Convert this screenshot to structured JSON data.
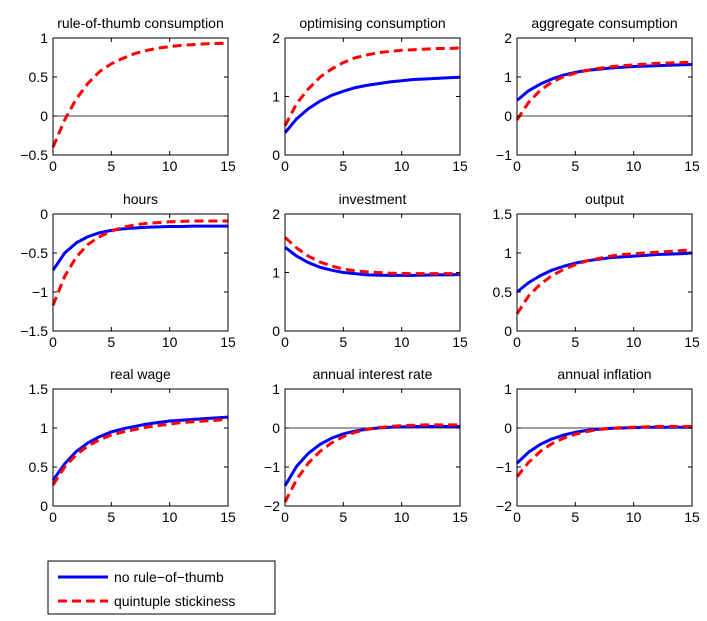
{
  "chart_data": [
    {
      "type": "line",
      "title": "rule-of-thumb consumption",
      "xlim": [
        0,
        15
      ],
      "ylim": [
        -0.5,
        1
      ],
      "xticks": [
        0,
        5,
        10,
        15
      ],
      "yticks": [
        -0.5,
        0,
        0.5,
        1
      ],
      "ytick_labels": [
        "−0.5",
        "0",
        "0.5",
        "1"
      ],
      "zero_line": true,
      "series": [
        {
          "name": "quintuple stickiness",
          "color": "#ff0000",
          "style": "dashed",
          "x": [
            0,
            1,
            2,
            3,
            4,
            5,
            6,
            7,
            8,
            9,
            10,
            11,
            12,
            13,
            14,
            15
          ],
          "y": [
            -0.4,
            -0.05,
            0.22,
            0.42,
            0.57,
            0.67,
            0.74,
            0.8,
            0.84,
            0.87,
            0.89,
            0.905,
            0.915,
            0.925,
            0.93,
            0.935
          ]
        }
      ]
    },
    {
      "type": "line",
      "title": "optimising consumption",
      "xlim": [
        0,
        15
      ],
      "ylim": [
        0,
        2
      ],
      "xticks": [
        0,
        5,
        10,
        15
      ],
      "yticks": [
        0,
        1,
        2
      ],
      "ytick_labels": [
        "0",
        "1",
        "2"
      ],
      "zero_line": false,
      "series": [
        {
          "name": "no rule-of-thumb",
          "color": "#0000ff",
          "style": "solid",
          "x": [
            0,
            1,
            2,
            3,
            4,
            5,
            6,
            7,
            8,
            9,
            10,
            11,
            12,
            13,
            14,
            15
          ],
          "y": [
            0.38,
            0.62,
            0.79,
            0.92,
            1.02,
            1.09,
            1.15,
            1.19,
            1.22,
            1.25,
            1.27,
            1.29,
            1.3,
            1.31,
            1.32,
            1.33
          ]
        },
        {
          "name": "quintuple stickiness",
          "color": "#ff0000",
          "style": "dashed",
          "x": [
            0,
            1,
            2,
            3,
            4,
            5,
            6,
            7,
            8,
            9,
            10,
            11,
            12,
            13,
            14,
            15
          ],
          "y": [
            0.5,
            0.88,
            1.13,
            1.33,
            1.47,
            1.58,
            1.66,
            1.71,
            1.75,
            1.77,
            1.79,
            1.8,
            1.81,
            1.82,
            1.82,
            1.83
          ]
        }
      ]
    },
    {
      "type": "line",
      "title": "aggregate consumption",
      "xlim": [
        0,
        15
      ],
      "ylim": [
        -1,
        2
      ],
      "xticks": [
        0,
        5,
        10,
        15
      ],
      "yticks": [
        -1,
        0,
        1,
        2
      ],
      "ytick_labels": [
        "−1",
        "0",
        "1",
        "2"
      ],
      "zero_line": true,
      "series": [
        {
          "name": "no rule-of-thumb",
          "color": "#0000ff",
          "style": "solid",
          "x": [
            0,
            1,
            2,
            3,
            4,
            5,
            6,
            7,
            8,
            9,
            10,
            11,
            12,
            13,
            14,
            15
          ],
          "y": [
            0.4,
            0.65,
            0.82,
            0.95,
            1.05,
            1.12,
            1.17,
            1.2,
            1.23,
            1.25,
            1.27,
            1.28,
            1.29,
            1.3,
            1.31,
            1.32
          ]
        },
        {
          "name": "quintuple stickiness",
          "color": "#ff0000",
          "style": "dashed",
          "x": [
            0,
            1,
            2,
            3,
            4,
            5,
            6,
            7,
            8,
            9,
            10,
            11,
            12,
            13,
            14,
            15
          ],
          "y": [
            -0.1,
            0.35,
            0.66,
            0.87,
            1.01,
            1.1,
            1.17,
            1.22,
            1.26,
            1.29,
            1.31,
            1.33,
            1.35,
            1.36,
            1.37,
            1.38
          ]
        }
      ]
    },
    {
      "type": "line",
      "title": "hours",
      "xlim": [
        0,
        15
      ],
      "ylim": [
        -1.5,
        0
      ],
      "xticks": [
        0,
        5,
        10,
        15
      ],
      "yticks": [
        -1.5,
        -1,
        -0.5,
        0
      ],
      "ytick_labels": [
        "−1.5",
        "−1",
        "−0.5",
        "0"
      ],
      "zero_line": false,
      "series": [
        {
          "name": "no rule-of-thumb",
          "color": "#0000ff",
          "style": "solid",
          "x": [
            0,
            1,
            2,
            3,
            4,
            5,
            6,
            7,
            8,
            9,
            10,
            11,
            12,
            13,
            14,
            15
          ],
          "y": [
            -0.72,
            -0.5,
            -0.37,
            -0.29,
            -0.24,
            -0.21,
            -0.19,
            -0.18,
            -0.17,
            -0.165,
            -0.16,
            -0.16,
            -0.155,
            -0.155,
            -0.155,
            -0.155
          ]
        },
        {
          "name": "quintuple stickiness",
          "color": "#ff0000",
          "style": "dashed",
          "x": [
            0,
            1,
            2,
            3,
            4,
            5,
            6,
            7,
            8,
            9,
            10,
            11,
            12,
            13,
            14,
            15
          ],
          "y": [
            -1.17,
            -0.8,
            -0.55,
            -0.39,
            -0.29,
            -0.22,
            -0.17,
            -0.14,
            -0.12,
            -0.11,
            -0.1,
            -0.095,
            -0.09,
            -0.09,
            -0.09,
            -0.09
          ]
        }
      ]
    },
    {
      "type": "line",
      "title": "investment",
      "xlim": [
        0,
        15
      ],
      "ylim": [
        0,
        2
      ],
      "xticks": [
        0,
        5,
        10,
        15
      ],
      "yticks": [
        0,
        1,
        2
      ],
      "ytick_labels": [
        "0",
        "1",
        "2"
      ],
      "zero_line": false,
      "series": [
        {
          "name": "no rule-of-thumb",
          "color": "#0000ff",
          "style": "solid",
          "x": [
            0,
            1,
            2,
            3,
            4,
            5,
            6,
            7,
            8,
            9,
            10,
            11,
            12,
            13,
            14,
            15
          ],
          "y": [
            1.43,
            1.28,
            1.17,
            1.09,
            1.04,
            1.0,
            0.98,
            0.96,
            0.955,
            0.95,
            0.95,
            0.95,
            0.955,
            0.96,
            0.96,
            0.965
          ]
        },
        {
          "name": "quintuple stickiness",
          "color": "#ff0000",
          "style": "dashed",
          "x": [
            0,
            1,
            2,
            3,
            4,
            5,
            6,
            7,
            8,
            9,
            10,
            11,
            12,
            13,
            14,
            15
          ],
          "y": [
            1.6,
            1.42,
            1.28,
            1.18,
            1.11,
            1.06,
            1.03,
            1.01,
            1.0,
            0.99,
            0.985,
            0.98,
            0.98,
            0.98,
            0.98,
            0.98
          ]
        }
      ]
    },
    {
      "type": "line",
      "title": "output",
      "xlim": [
        0,
        15
      ],
      "ylim": [
        0,
        1.5
      ],
      "xticks": [
        0,
        5,
        10,
        15
      ],
      "yticks": [
        0,
        0.5,
        1,
        1.5
      ],
      "ytick_labels": [
        "0",
        "0.5",
        "1",
        "1.5"
      ],
      "zero_line": false,
      "series": [
        {
          "name": "no rule-of-thumb",
          "color": "#0000ff",
          "style": "solid",
          "x": [
            0,
            1,
            2,
            3,
            4,
            5,
            6,
            7,
            8,
            9,
            10,
            11,
            12,
            13,
            14,
            15
          ],
          "y": [
            0.5,
            0.62,
            0.71,
            0.78,
            0.83,
            0.87,
            0.9,
            0.92,
            0.94,
            0.95,
            0.96,
            0.97,
            0.98,
            0.985,
            0.99,
            1.0
          ]
        },
        {
          "name": "quintuple stickiness",
          "color": "#ff0000",
          "style": "dashed",
          "x": [
            0,
            1,
            2,
            3,
            4,
            5,
            6,
            7,
            8,
            9,
            10,
            11,
            12,
            13,
            14,
            15
          ],
          "y": [
            0.22,
            0.45,
            0.6,
            0.71,
            0.79,
            0.85,
            0.9,
            0.93,
            0.96,
            0.98,
            0.99,
            1.0,
            1.01,
            1.02,
            1.03,
            1.04
          ]
        }
      ]
    },
    {
      "type": "line",
      "title": "real wage",
      "xlim": [
        0,
        15
      ],
      "ylim": [
        0,
        1.5
      ],
      "xticks": [
        0,
        5,
        10,
        15
      ],
      "yticks": [
        0,
        0.5,
        1,
        1.5
      ],
      "ytick_labels": [
        "0",
        "0.5",
        "1",
        "1.5"
      ],
      "zero_line": false,
      "series": [
        {
          "name": "no rule-of-thumb",
          "color": "#0000ff",
          "style": "solid",
          "x": [
            0,
            1,
            2,
            3,
            4,
            5,
            6,
            7,
            8,
            9,
            10,
            11,
            12,
            13,
            14,
            15
          ],
          "y": [
            0.33,
            0.54,
            0.7,
            0.81,
            0.89,
            0.95,
            0.99,
            1.02,
            1.05,
            1.07,
            1.09,
            1.1,
            1.11,
            1.12,
            1.13,
            1.14
          ]
        },
        {
          "name": "quintuple stickiness",
          "color": "#ff0000",
          "style": "dashed",
          "x": [
            0,
            1,
            2,
            3,
            4,
            5,
            6,
            7,
            8,
            9,
            10,
            11,
            12,
            13,
            14,
            15
          ],
          "y": [
            0.27,
            0.5,
            0.66,
            0.77,
            0.85,
            0.91,
            0.95,
            0.98,
            1.01,
            1.03,
            1.05,
            1.07,
            1.08,
            1.09,
            1.1,
            1.11
          ]
        }
      ]
    },
    {
      "type": "line",
      "title": "annual interest rate",
      "xlim": [
        0,
        15
      ],
      "ylim": [
        -2,
        1
      ],
      "xticks": [
        0,
        5,
        10,
        15
      ],
      "yticks": [
        -2,
        -1,
        0,
        1
      ],
      "ytick_labels": [
        "−2",
        "−1",
        "0",
        "1"
      ],
      "zero_line": true,
      "series": [
        {
          "name": "no rule-of-thumb",
          "color": "#0000ff",
          "style": "solid",
          "x": [
            0,
            1,
            2,
            3,
            4,
            5,
            6,
            7,
            8,
            9,
            10,
            11,
            12,
            13,
            14,
            15
          ],
          "y": [
            -1.48,
            -0.98,
            -0.65,
            -0.42,
            -0.26,
            -0.15,
            -0.08,
            -0.03,
            0.0,
            0.02,
            0.03,
            0.035,
            0.04,
            0.04,
            0.04,
            0.04
          ]
        },
        {
          "name": "quintuple stickiness",
          "color": "#ff0000",
          "style": "dashed",
          "x": [
            0,
            1,
            2,
            3,
            4,
            5,
            6,
            7,
            8,
            9,
            10,
            11,
            12,
            13,
            14,
            15
          ],
          "y": [
            -1.9,
            -1.32,
            -0.9,
            -0.6,
            -0.38,
            -0.22,
            -0.11,
            -0.04,
            0.01,
            0.04,
            0.06,
            0.07,
            0.08,
            0.08,
            0.08,
            0.08
          ]
        }
      ]
    },
    {
      "type": "line",
      "title": "annual inflation",
      "xlim": [
        0,
        15
      ],
      "ylim": [
        -2,
        1
      ],
      "xticks": [
        0,
        5,
        10,
        15
      ],
      "yticks": [
        -2,
        -1,
        0,
        1
      ],
      "ytick_labels": [
        "−2",
        "−1",
        "0",
        "1"
      ],
      "zero_line": true,
      "series": [
        {
          "name": "no rule-of-thumb",
          "color": "#0000ff",
          "style": "solid",
          "x": [
            0,
            1,
            2,
            3,
            4,
            5,
            6,
            7,
            8,
            9,
            10,
            11,
            12,
            13,
            14,
            15
          ],
          "y": [
            -0.9,
            -0.62,
            -0.42,
            -0.28,
            -0.18,
            -0.11,
            -0.06,
            -0.03,
            -0.01,
            0.0,
            0.01,
            0.02,
            0.02,
            0.02,
            0.02,
            0.02
          ]
        },
        {
          "name": "quintuple stickiness",
          "color": "#ff0000",
          "style": "dashed",
          "x": [
            0,
            1,
            2,
            3,
            4,
            5,
            6,
            7,
            8,
            9,
            10,
            11,
            12,
            13,
            14,
            15
          ],
          "y": [
            -1.25,
            -0.88,
            -0.6,
            -0.4,
            -0.26,
            -0.16,
            -0.09,
            -0.04,
            -0.01,
            0.01,
            0.02,
            0.03,
            0.04,
            0.04,
            0.04,
            0.04
          ]
        }
      ]
    }
  ],
  "legend": {
    "entries": [
      {
        "label": "no rule−of−thumb",
        "color": "#0000ff",
        "style": "solid"
      },
      {
        "label": "quintuple stickiness",
        "color": "#ff0000",
        "style": "dashed"
      }
    ]
  },
  "colors": {
    "axis": "#000000",
    "background": "#ffffff",
    "zero_line": "#000000"
  }
}
